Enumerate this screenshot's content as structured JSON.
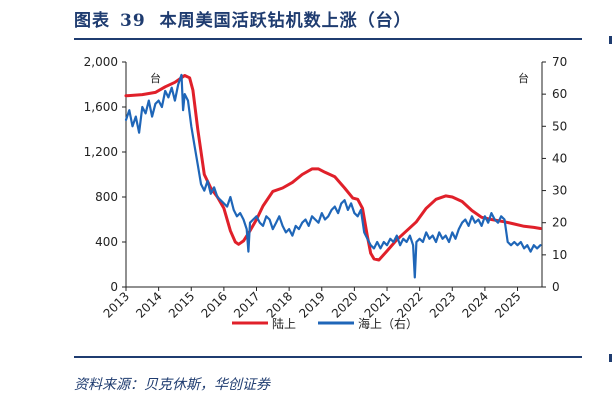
{
  "header": {
    "label": "图表",
    "number": "39",
    "text": "本周美国活跃钻机数上涨（台）"
  },
  "source": "资料来源：贝克休斯，华创证券",
  "chart_data": {
    "type": "line",
    "x_ticks": [
      "2013",
      "2014",
      "2015",
      "2016",
      "2017",
      "2018",
      "2019",
      "2020",
      "2021",
      "2022",
      "2023",
      "2024",
      "2025"
    ],
    "y_left": {
      "ticks": [
        "2,000",
        "1,600",
        "1,200",
        "800",
        "400",
        "0"
      ],
      "values": [
        2000,
        1600,
        1200,
        800,
        400,
        0
      ],
      "unit_label": "台",
      "range": [
        0,
        2000
      ]
    },
    "y_right": {
      "ticks": [
        "70",
        "60",
        "50",
        "40",
        "30",
        "20",
        "10",
        "0"
      ],
      "values": [
        70,
        60,
        50,
        40,
        30,
        20,
        10,
        0
      ],
      "unit_label": "台",
      "range": [
        0,
        70
      ]
    },
    "x_range": [
      2013,
      2025.75
    ],
    "grid": false,
    "legend_position": "bottom",
    "series": [
      {
        "name": "陆上",
        "color": "#e0202a",
        "axis": "left",
        "points": [
          [
            2013.0,
            1700
          ],
          [
            2013.5,
            1710
          ],
          [
            2013.9,
            1730
          ],
          [
            2014.2,
            1780
          ],
          [
            2014.5,
            1820
          ],
          [
            2014.8,
            1880
          ],
          [
            2014.95,
            1860
          ],
          [
            2015.05,
            1750
          ],
          [
            2015.2,
            1400
          ],
          [
            2015.4,
            1000
          ],
          [
            2015.6,
            880
          ],
          [
            2015.8,
            800
          ],
          [
            2016.0,
            700
          ],
          [
            2016.2,
            500
          ],
          [
            2016.35,
            400
          ],
          [
            2016.45,
            380
          ],
          [
            2016.6,
            410
          ],
          [
            2016.8,
            500
          ],
          [
            2017.0,
            600
          ],
          [
            2017.2,
            720
          ],
          [
            2017.5,
            850
          ],
          [
            2017.8,
            880
          ],
          [
            2018.1,
            930
          ],
          [
            2018.4,
            1000
          ],
          [
            2018.7,
            1050
          ],
          [
            2018.9,
            1050
          ],
          [
            2019.1,
            1020
          ],
          [
            2019.4,
            980
          ],
          [
            2019.7,
            880
          ],
          [
            2019.95,
            790
          ],
          [
            2020.1,
            780
          ],
          [
            2020.25,
            700
          ],
          [
            2020.4,
            450
          ],
          [
            2020.5,
            300
          ],
          [
            2020.6,
            250
          ],
          [
            2020.75,
            240
          ],
          [
            2021.0,
            320
          ],
          [
            2021.3,
            420
          ],
          [
            2021.6,
            500
          ],
          [
            2021.9,
            580
          ],
          [
            2022.2,
            700
          ],
          [
            2022.5,
            780
          ],
          [
            2022.8,
            810
          ],
          [
            2023.0,
            800
          ],
          [
            2023.3,
            760
          ],
          [
            2023.6,
            680
          ],
          [
            2023.9,
            620
          ],
          [
            2024.2,
            600
          ],
          [
            2024.6,
            580
          ],
          [
            2024.9,
            560
          ],
          [
            2025.2,
            540
          ],
          [
            2025.5,
            530
          ],
          [
            2025.7,
            520
          ]
        ]
      },
      {
        "name": "海上（右）",
        "color": "#1f66b8",
        "axis": "right",
        "points": [
          [
            2013.0,
            52
          ],
          [
            2013.1,
            55
          ],
          [
            2013.2,
            50
          ],
          [
            2013.3,
            53
          ],
          [
            2013.4,
            48
          ],
          [
            2013.5,
            56
          ],
          [
            2013.6,
            54
          ],
          [
            2013.7,
            58
          ],
          [
            2013.8,
            53
          ],
          [
            2013.9,
            57
          ],
          [
            2014.0,
            58
          ],
          [
            2014.1,
            56
          ],
          [
            2014.2,
            61
          ],
          [
            2014.3,
            59
          ],
          [
            2014.4,
            62
          ],
          [
            2014.5,
            58
          ],
          [
            2014.6,
            63
          ],
          [
            2014.7,
            66
          ],
          [
            2014.75,
            55
          ],
          [
            2014.8,
            60
          ],
          [
            2014.9,
            58
          ],
          [
            2015.0,
            50
          ],
          [
            2015.1,
            44
          ],
          [
            2015.2,
            38
          ],
          [
            2015.3,
            32
          ],
          [
            2015.4,
            30
          ],
          [
            2015.5,
            33
          ],
          [
            2015.6,
            29
          ],
          [
            2015.7,
            31
          ],
          [
            2015.8,
            28
          ],
          [
            2015.9,
            27
          ],
          [
            2016.0,
            26
          ],
          [
            2016.1,
            25
          ],
          [
            2016.2,
            28
          ],
          [
            2016.3,
            24
          ],
          [
            2016.4,
            22
          ],
          [
            2016.5,
            23
          ],
          [
            2016.6,
            21
          ],
          [
            2016.7,
            18
          ],
          [
            2016.75,
            11
          ],
          [
            2016.8,
            20
          ],
          [
            2016.9,
            21
          ],
          [
            2017.0,
            22
          ],
          [
            2017.1,
            20
          ],
          [
            2017.2,
            19
          ],
          [
            2017.3,
            22
          ],
          [
            2017.4,
            21
          ],
          [
            2017.5,
            18
          ],
          [
            2017.6,
            20
          ],
          [
            2017.7,
            22
          ],
          [
            2017.8,
            19
          ],
          [
            2017.9,
            17
          ],
          [
            2018.0,
            18
          ],
          [
            2018.1,
            16
          ],
          [
            2018.2,
            19
          ],
          [
            2018.3,
            18
          ],
          [
            2018.4,
            20
          ],
          [
            2018.5,
            21
          ],
          [
            2018.6,
            19
          ],
          [
            2018.7,
            22
          ],
          [
            2018.8,
            21
          ],
          [
            2018.9,
            20
          ],
          [
            2019.0,
            23
          ],
          [
            2019.1,
            21
          ],
          [
            2019.2,
            22
          ],
          [
            2019.3,
            24
          ],
          [
            2019.4,
            25
          ],
          [
            2019.5,
            23
          ],
          [
            2019.6,
            26
          ],
          [
            2019.7,
            27
          ],
          [
            2019.8,
            24
          ],
          [
            2019.9,
            26
          ],
          [
            2020.0,
            23
          ],
          [
            2020.1,
            22
          ],
          [
            2020.2,
            24
          ],
          [
            2020.3,
            17
          ],
          [
            2020.4,
            15
          ],
          [
            2020.5,
            13
          ],
          [
            2020.6,
            12
          ],
          [
            2020.7,
            14
          ],
          [
            2020.8,
            12
          ],
          [
            2020.9,
            14
          ],
          [
            2021.0,
            13
          ],
          [
            2021.1,
            15
          ],
          [
            2021.2,
            14
          ],
          [
            2021.3,
            16
          ],
          [
            2021.4,
            13
          ],
          [
            2021.5,
            15
          ],
          [
            2021.6,
            14
          ],
          [
            2021.7,
            16
          ],
          [
            2021.8,
            13
          ],
          [
            2021.85,
            3
          ],
          [
            2021.9,
            14
          ],
          [
            2022.0,
            15
          ],
          [
            2022.1,
            14
          ],
          [
            2022.2,
            17
          ],
          [
            2022.3,
            15
          ],
          [
            2022.4,
            16
          ],
          [
            2022.5,
            14
          ],
          [
            2022.6,
            17
          ],
          [
            2022.7,
            15
          ],
          [
            2022.8,
            16
          ],
          [
            2022.9,
            14
          ],
          [
            2023.0,
            17
          ],
          [
            2023.1,
            15
          ],
          [
            2023.2,
            18
          ],
          [
            2023.3,
            20
          ],
          [
            2023.4,
            21
          ],
          [
            2023.5,
            19
          ],
          [
            2023.6,
            22
          ],
          [
            2023.7,
            20
          ],
          [
            2023.8,
            21
          ],
          [
            2023.9,
            19
          ],
          [
            2024.0,
            22
          ],
          [
            2024.1,
            20
          ],
          [
            2024.2,
            23
          ],
          [
            2024.3,
            21
          ],
          [
            2024.4,
            20
          ],
          [
            2024.5,
            22
          ],
          [
            2024.6,
            21
          ],
          [
            2024.7,
            14
          ],
          [
            2024.8,
            13
          ],
          [
            2024.9,
            14
          ],
          [
            2025.0,
            13
          ],
          [
            2025.1,
            14
          ],
          [
            2025.2,
            12
          ],
          [
            2025.3,
            13
          ],
          [
            2025.4,
            11
          ],
          [
            2025.5,
            13
          ],
          [
            2025.6,
            12
          ],
          [
            2025.7,
            13
          ]
        ]
      }
    ]
  }
}
